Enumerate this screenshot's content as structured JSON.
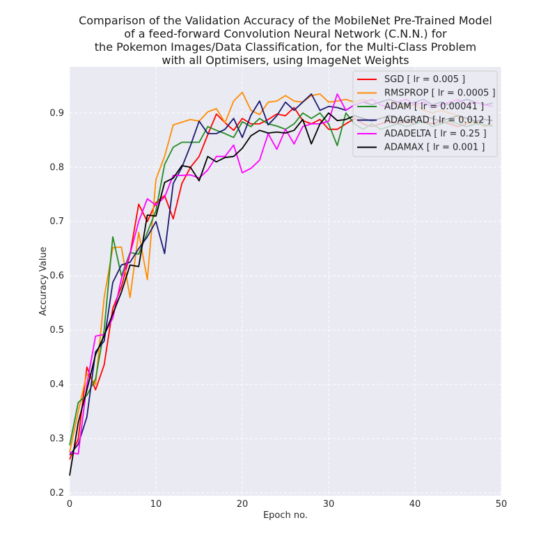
{
  "chart_data": {
    "type": "line",
    "title_lines": [
      "Comparison of the Validation Accuracy of the MobileNet Pre-Trained Model",
      "of a feed-forward Convolution Neural Network (C.N.N.) for",
      "the Pokemon Images/Data Classification, for the Multi-Class Problem",
      "with all Optimisers, using ImageNet Weights"
    ],
    "xlabel": "Epoch no.",
    "ylabel": "Accuracy Value",
    "xlim": [
      0,
      50
    ],
    "ylim": [
      0.195,
      0.985
    ],
    "xticks": [
      0,
      10,
      20,
      30,
      40,
      50
    ],
    "yticks": [
      0.2,
      0.3,
      0.4,
      0.5,
      0.6,
      0.7,
      0.8,
      0.9
    ],
    "ytick_labels": [
      "0.2",
      "0.3",
      "0.4",
      "0.5",
      "0.6",
      "0.7",
      "0.8",
      "0.9"
    ],
    "grid": true,
    "legend_position": "top-right",
    "series": [
      {
        "name": "SGD [ lr = 0.005 ]",
        "color": "#ff0000",
        "values": [
          0.262,
          0.3,
          0.432,
          0.39,
          0.436,
          0.54,
          0.58,
          0.64,
          0.732,
          0.7,
          0.735,
          0.748,
          0.705,
          0.77,
          0.8,
          0.82,
          0.86,
          0.898,
          0.882,
          0.868,
          0.89,
          0.88,
          0.88,
          0.888,
          0.898,
          0.895,
          0.91,
          0.886,
          0.88,
          0.888,
          0.87,
          0.87,
          0.88,
          0.89,
          0.88,
          0.875,
          0.88,
          0.885,
          0.88,
          0.885,
          0.88,
          0.885,
          0.88,
          0.885,
          0.88,
          0.875,
          0.88,
          0.885,
          0.875,
          0.878
        ]
      },
      {
        "name": "RMSPROP [ lr = 0.0005 ]",
        "color": "#ff8c00",
        "values": [
          0.275,
          0.35,
          0.42,
          0.4,
          0.56,
          0.652,
          0.653,
          0.56,
          0.68,
          0.593,
          0.778,
          0.82,
          0.878,
          0.883,
          0.888,
          0.885,
          0.902,
          0.908,
          0.882,
          0.922,
          0.938,
          0.905,
          0.897,
          0.92,
          0.922,
          0.932,
          0.922,
          0.92,
          0.932,
          0.935,
          0.92,
          0.922,
          0.925,
          0.92,
          0.925,
          0.915,
          0.92,
          0.925,
          0.915,
          0.912,
          0.915,
          0.905,
          0.9,
          0.905,
          0.9,
          0.895,
          0.88,
          0.885,
          0.875,
          0.878
        ]
      },
      {
        "name": "ADAM [ lr = 0.00041 ]",
        "color": "#228b22",
        "values": [
          0.288,
          0.367,
          0.38,
          0.41,
          0.5,
          0.672,
          0.6,
          0.643,
          0.64,
          0.68,
          0.72,
          0.805,
          0.837,
          0.846,
          0.846,
          0.846,
          0.875,
          0.868,
          0.862,
          0.855,
          0.884,
          0.875,
          0.89,
          0.88,
          0.876,
          0.87,
          0.88,
          0.9,
          0.89,
          0.9,
          0.88,
          0.84,
          0.9,
          0.88,
          0.87,
          0.88,
          0.87,
          0.875,
          0.88,
          0.875,
          0.88,
          0.885,
          0.875,
          0.88,
          0.885,
          0.88,
          0.875,
          0.88,
          0.878,
          0.876
        ]
      },
      {
        "name": "ADAGRAD [ lr = 0.012 ]",
        "color": "#191970",
        "values": [
          0.27,
          0.29,
          0.34,
          0.46,
          0.48,
          0.588,
          0.62,
          0.625,
          0.65,
          0.672,
          0.7,
          0.641,
          0.77,
          0.8,
          0.84,
          0.885,
          0.862,
          0.862,
          0.87,
          0.89,
          0.855,
          0.896,
          0.922,
          0.878,
          0.895,
          0.92,
          0.905,
          0.92,
          0.935,
          0.905,
          0.912,
          0.91,
          0.905,
          0.915,
          0.92,
          0.915,
          0.92,
          0.925,
          0.92,
          0.915,
          0.92,
          0.925,
          0.915,
          0.92,
          0.915,
          0.92,
          0.925,
          0.92,
          0.915,
          0.918
        ]
      },
      {
        "name": "ADADELTA [ lr = 0.25 ]",
        "color": "#ff00ff",
        "values": [
          0.275,
          0.272,
          0.4,
          0.489,
          0.492,
          0.522,
          0.595,
          0.64,
          0.7,
          0.742,
          0.73,
          0.745,
          0.785,
          0.785,
          0.786,
          0.78,
          0.795,
          0.82,
          0.82,
          0.841,
          0.79,
          0.798,
          0.813,
          0.862,
          0.833,
          0.87,
          0.843,
          0.875,
          0.88,
          0.88,
          0.885,
          0.935,
          0.905,
          0.915,
          0.92,
          0.925,
          0.915,
          0.91,
          0.92,
          0.925,
          0.915,
          0.92,
          0.91,
          0.915,
          0.92,
          0.925,
          0.915,
          0.92,
          0.915,
          0.912
        ]
      },
      {
        "name": "ADAMAX [ lr = 0.001 ]",
        "color": "#000000",
        "values": [
          0.232,
          0.33,
          0.39,
          0.455,
          0.49,
          0.53,
          0.57,
          0.62,
          0.617,
          0.712,
          0.71,
          0.772,
          0.78,
          0.803,
          0.8,
          0.775,
          0.82,
          0.81,
          0.818,
          0.82,
          0.835,
          0.858,
          0.868,
          0.863,
          0.865,
          0.863,
          0.868,
          0.888,
          0.843,
          0.88,
          0.9,
          0.886,
          0.888,
          0.895,
          0.89,
          0.885,
          0.89,
          0.895,
          0.89,
          0.885,
          0.89,
          0.895,
          0.89,
          0.885,
          0.89,
          0.895,
          0.89,
          0.885,
          0.888,
          0.886
        ]
      }
    ]
  }
}
